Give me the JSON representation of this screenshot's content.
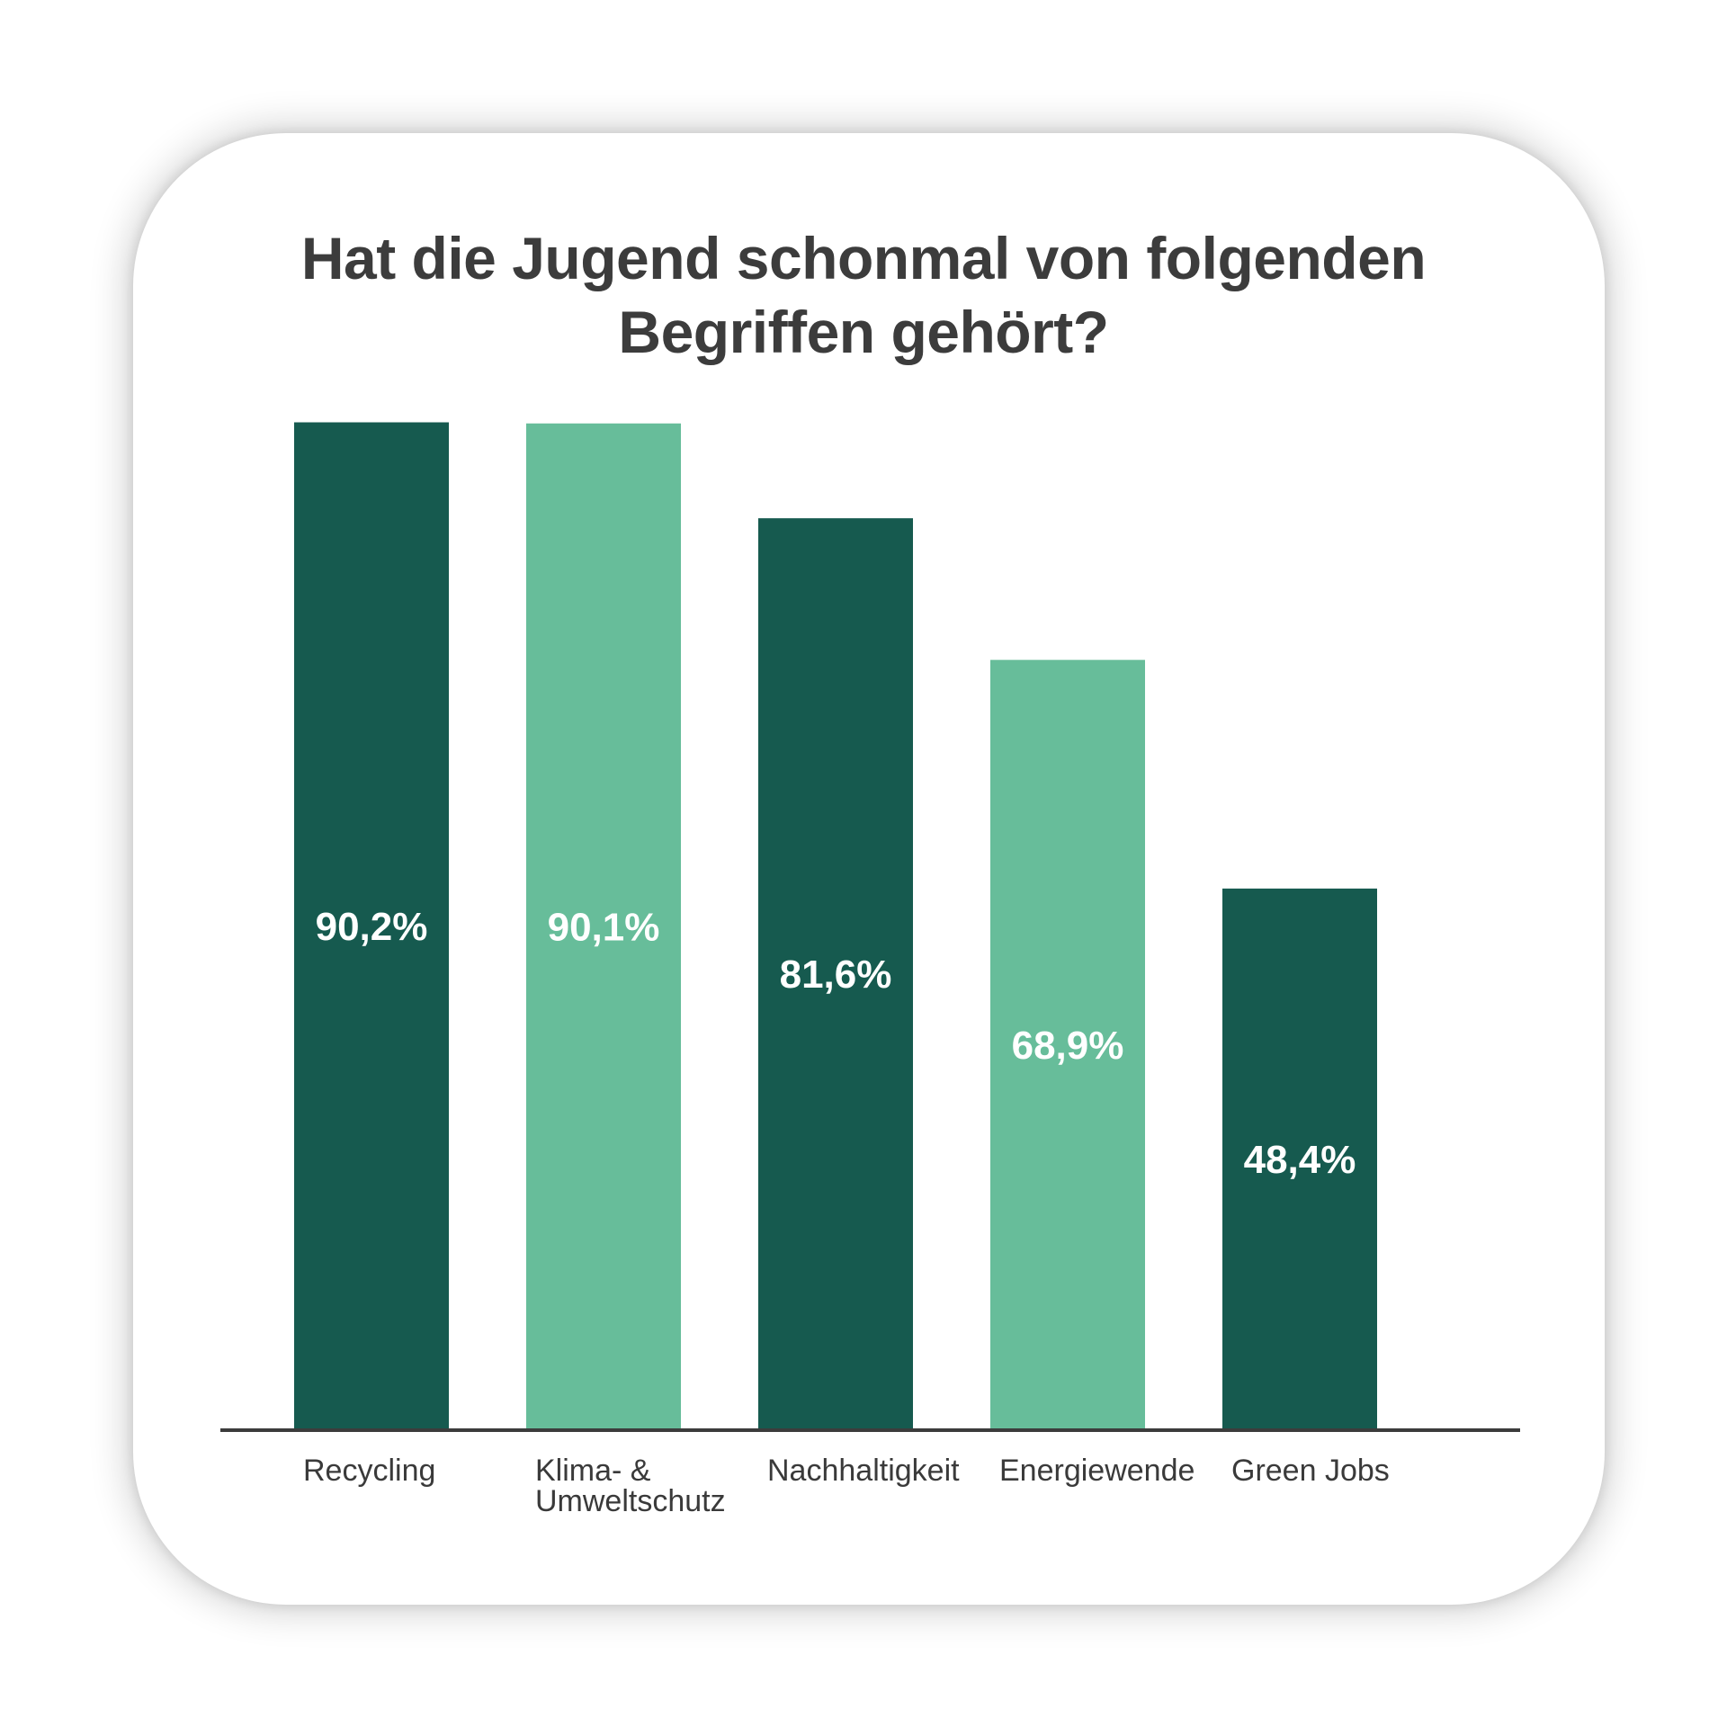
{
  "chart_data": {
    "type": "bar",
    "title": "Hat die Jugend schonmal von folgenden\nBegriffen gehört?",
    "categories": [
      [
        "Recycling"
      ],
      [
        "Klima- &",
        "Umweltschutz"
      ],
      [
        "Nachhaltigkeit"
      ],
      [
        "Energiewende"
      ],
      [
        "Green Jobs"
      ]
    ],
    "values": [
      90.2,
      90.1,
      81.6,
      68.9,
      48.4
    ],
    "value_labels": [
      "90,2%",
      "90,1%",
      "81,6%",
      "68,9%",
      "48,4%"
    ],
    "ylim": [
      0,
      100
    ],
    "colors": [
      "#165a4f",
      "#67bd9a",
      "#165a4f",
      "#67bd9a",
      "#165a4f"
    ],
    "axis_color": "#3c3c3c",
    "grid": false
  }
}
